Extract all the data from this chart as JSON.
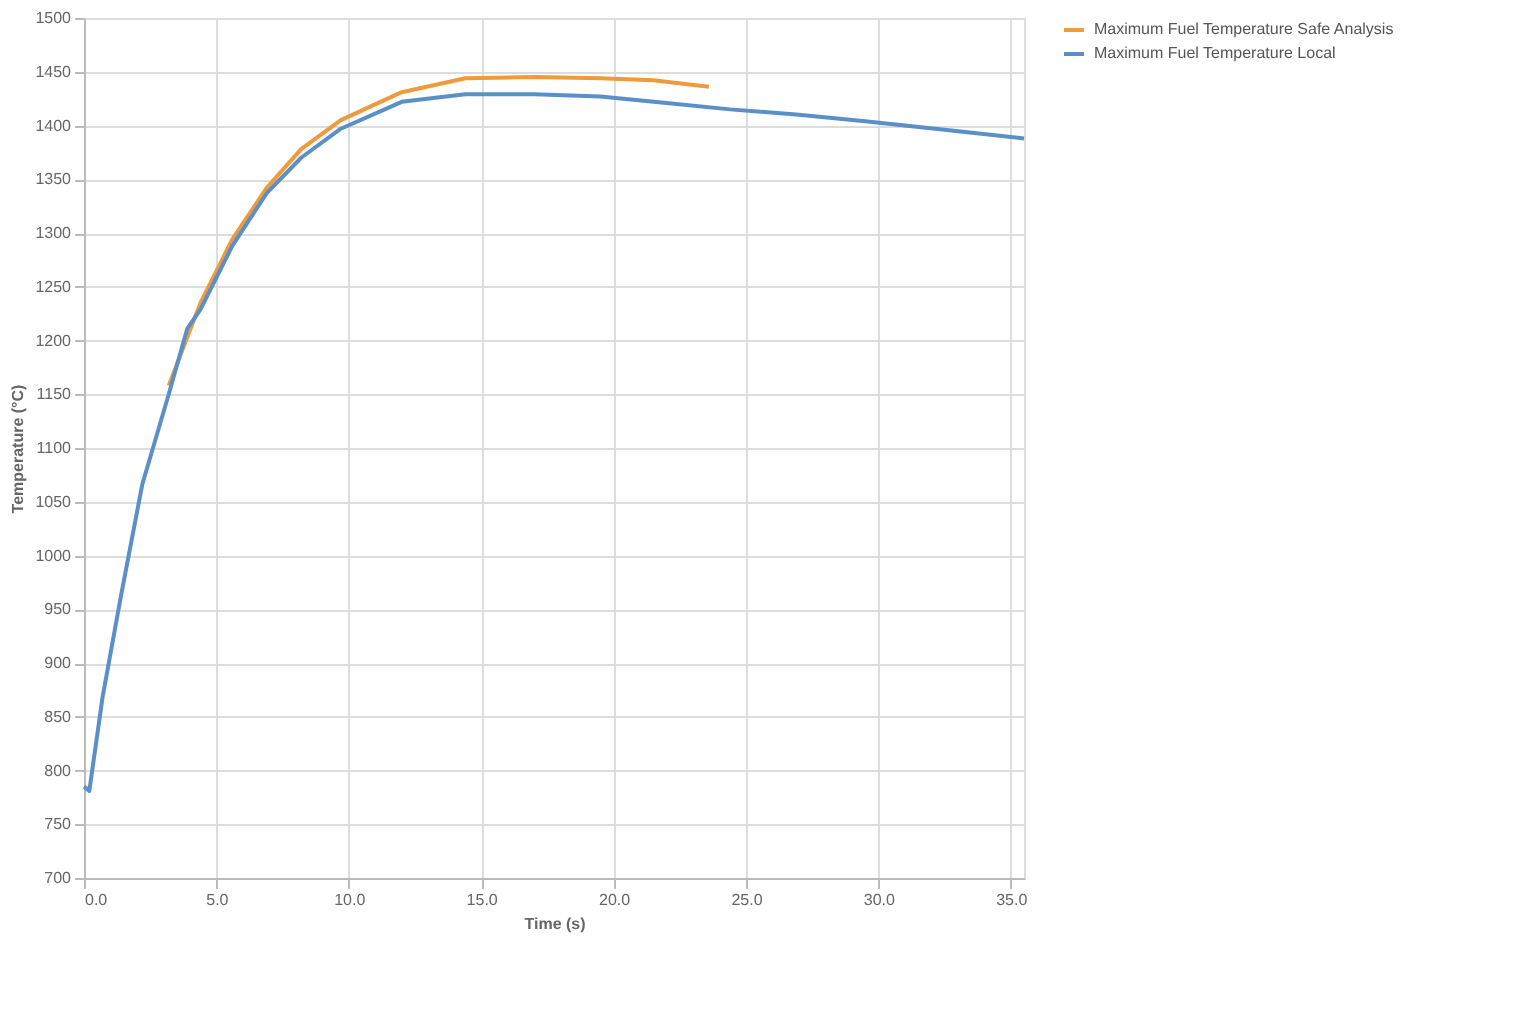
{
  "chart_data": {
    "type": "line",
    "xlabel": "Time (s)",
    "ylabel": "Temperature (°C)",
    "xlim": [
      0,
      35.5
    ],
    "xticks": [
      {
        "value": 0,
        "label": "0.0"
      },
      {
        "value": 5,
        "label": "5.0"
      },
      {
        "value": 10,
        "label": "10.0"
      },
      {
        "value": 15,
        "label": "15.0"
      },
      {
        "value": 20,
        "label": "20.0"
      },
      {
        "value": 25,
        "label": "25.0"
      },
      {
        "value": 30,
        "label": "30.0"
      },
      {
        "value": 35,
        "label": "35.0"
      }
    ],
    "ylim": [
      700,
      1500
    ],
    "yticks": [
      700,
      750,
      800,
      850,
      900,
      950,
      1000,
      1050,
      1100,
      1150,
      1200,
      1250,
      1300,
      1350,
      1400,
      1450,
      1500
    ],
    "grid": true,
    "legend": "right",
    "marker": "none",
    "line_style": "solid",
    "series": [
      {
        "name": "Maximum Fuel Temperature Safe Analysis",
        "color": "#ed9b3c",
        "x": [
          3.2,
          4.4,
          5.6,
          6.9,
          8.2,
          9.7,
          12.0,
          14.4,
          17.0,
          19.5,
          21.5,
          23.6
        ],
        "values": [
          1158,
          1235,
          1294,
          1342,
          1378,
          1405,
          1431,
          1444,
          1445,
          1444,
          1442,
          1436
        ]
      },
      {
        "name": "Maximum Fuel Temperature Local",
        "color": "#5b8fc7",
        "x": [
          0,
          0.2,
          0.7,
          1.4,
          2.2,
          3.2,
          3.9,
          4.4,
          5.6,
          6.9,
          8.2,
          9.7,
          12.0,
          14.4,
          17.0,
          19.5,
          22.0,
          24.4,
          27.0,
          29.5,
          32.5,
          35.5
        ],
        "values": [
          785,
          781,
          868,
          963,
          1066,
          1150,
          1211,
          1229,
          1288,
          1337,
          1370,
          1397,
          1422,
          1429,
          1429,
          1427,
          1421,
          1415,
          1410,
          1404,
          1396,
          1388
        ]
      }
    ]
  }
}
